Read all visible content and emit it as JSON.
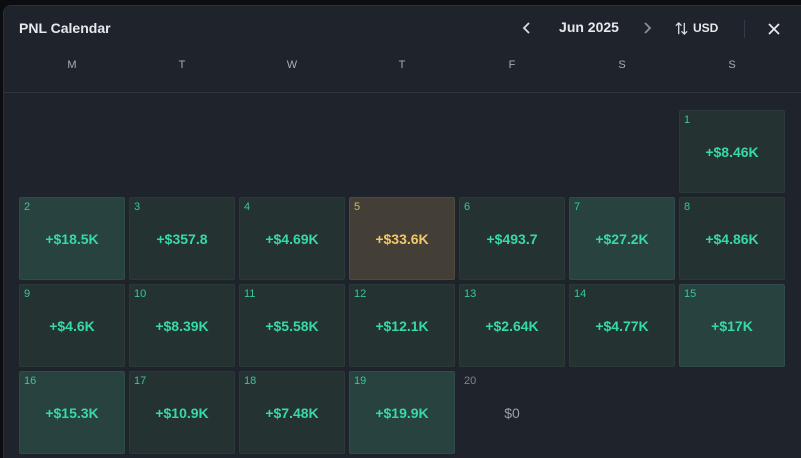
{
  "header": {
    "title": "PNL Calendar",
    "month": "Jun 2025",
    "currency": "USD",
    "prev_icon": "chevron-left-icon",
    "next_icon": "chevron-right-icon",
    "currency_icon": "sort-arrows-icon",
    "close_icon": "close-icon"
  },
  "weekdays": [
    "M",
    "T",
    "W",
    "T",
    "F",
    "S",
    "S"
  ],
  "colors": {
    "positive": "#36d9a8",
    "highlight": "#f3c76b",
    "neutral": "#9aa0a8"
  },
  "days": [
    {
      "day": "1",
      "value": "+$8.46K",
      "tone": "normal"
    },
    {
      "day": "2",
      "value": "+$18.5K",
      "tone": "strong"
    },
    {
      "day": "3",
      "value": "+$357.8",
      "tone": "normal"
    },
    {
      "day": "4",
      "value": "+$4.69K",
      "tone": "normal"
    },
    {
      "day": "5",
      "value": "+$33.6K",
      "tone": "gold"
    },
    {
      "day": "6",
      "value": "+$493.7",
      "tone": "normal"
    },
    {
      "day": "7",
      "value": "+$27.2K",
      "tone": "strong"
    },
    {
      "day": "8",
      "value": "+$4.86K",
      "tone": "normal"
    },
    {
      "day": "9",
      "value": "+$4.6K",
      "tone": "normal"
    },
    {
      "day": "10",
      "value": "+$8.39K",
      "tone": "normal"
    },
    {
      "day": "11",
      "value": "+$5.58K",
      "tone": "normal"
    },
    {
      "day": "12",
      "value": "+$12.1K",
      "tone": "normal"
    },
    {
      "day": "13",
      "value": "+$2.64K",
      "tone": "normal"
    },
    {
      "day": "14",
      "value": "+$4.77K",
      "tone": "normal"
    },
    {
      "day": "15",
      "value": "+$17K",
      "tone": "strong"
    },
    {
      "day": "16",
      "value": "+$15.3K",
      "tone": "strong"
    },
    {
      "day": "17",
      "value": "+$10.9K",
      "tone": "normal"
    },
    {
      "day": "18",
      "value": "+$7.48K",
      "tone": "normal"
    },
    {
      "day": "19",
      "value": "+$19.9K",
      "tone": "strong"
    },
    {
      "day": "20",
      "value": "$0",
      "tone": "neutral"
    }
  ]
}
